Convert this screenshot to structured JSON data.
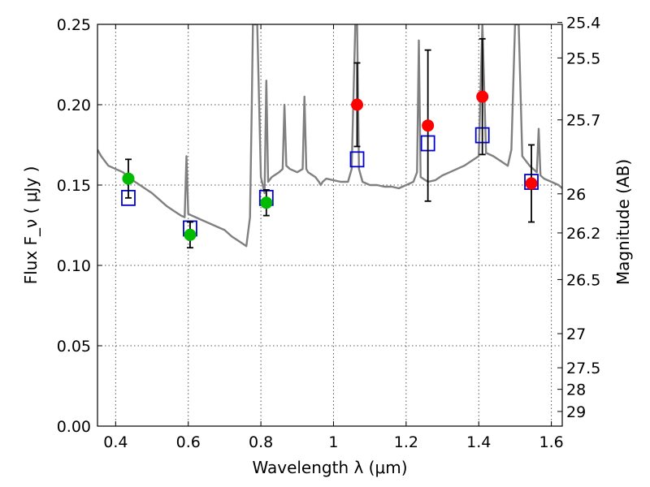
{
  "chart_data": {
    "type": "scatter",
    "xlabel": "Wavelength  λ (μm)",
    "ylabel": "Flux  F_ν  ( μJy )",
    "ylabel_right": "Magnitude (AB)",
    "xlim": [
      0.35,
      1.63
    ],
    "ylim": [
      0.0,
      0.25
    ],
    "grid": true,
    "x_ticks": [
      0.4,
      0.6,
      0.8,
      1.0,
      1.2,
      1.4,
      1.6
    ],
    "x_tick_labels": [
      "0.4",
      "0.6",
      "0.8",
      "1",
      "1.2",
      "1.4",
      "1.6"
    ],
    "y_ticks": [
      0.0,
      0.05,
      0.1,
      0.15,
      0.2,
      0.25
    ],
    "y_tick_labels": [
      "0.00",
      "0.05",
      "0.10",
      "0.15",
      "0.20",
      "0.25"
    ],
    "right_ticks": [
      {
        "mag": 25.4,
        "label": "25.4"
      },
      {
        "mag": 25.5,
        "label": "25.5"
      },
      {
        "mag": 25.7,
        "label": "25.7"
      },
      {
        "mag": 26.0,
        "label": "26"
      },
      {
        "mag": 26.2,
        "label": "26.2"
      },
      {
        "mag": 26.5,
        "label": "26.5"
      },
      {
        "mag": 27.0,
        "label": "27"
      },
      {
        "mag": 27.5,
        "label": "27.5"
      },
      {
        "mag": 28.0,
        "label": "28"
      },
      {
        "mag": 29.0,
        "label": "29"
      }
    ],
    "colors": {
      "template": "#808080",
      "model": "#0000cc",
      "optical": "#00bb00",
      "infrared": "#ff0000",
      "errorbar": "#000000",
      "grid": "#555555"
    },
    "series": [
      {
        "kind": "line",
        "color": "#808080",
        "x": [
          0.35,
          0.36,
          0.38,
          0.4,
          0.42,
          0.44,
          0.46,
          0.48,
          0.5,
          0.52,
          0.54,
          0.56,
          0.58,
          0.59,
          0.595,
          0.6,
          0.62,
          0.64,
          0.66,
          0.68,
          0.7,
          0.72,
          0.74,
          0.76,
          0.77,
          0.775,
          0.778,
          0.785,
          0.79,
          0.8,
          0.81,
          0.815,
          0.82,
          0.83,
          0.85,
          0.86,
          0.865,
          0.87,
          0.88,
          0.9,
          0.915,
          0.92,
          0.925,
          0.93,
          0.95,
          0.96,
          0.965,
          0.97,
          0.98,
          1.0,
          1.02,
          1.04,
          1.05,
          1.06,
          1.065,
          1.07,
          1.08,
          1.1,
          1.12,
          1.14,
          1.16,
          1.18,
          1.2,
          1.22,
          1.23,
          1.235,
          1.24,
          1.26,
          1.28,
          1.3,
          1.32,
          1.34,
          1.36,
          1.38,
          1.4,
          1.41,
          1.42,
          1.44,
          1.46,
          1.48,
          1.49,
          1.5,
          1.51,
          1.52,
          1.54,
          1.56,
          1.565,
          1.57,
          1.58,
          1.6,
          1.62,
          1.63
        ],
        "y": [
          0.172,
          0.168,
          0.162,
          0.16,
          0.158,
          0.154,
          0.151,
          0.148,
          0.145,
          0.141,
          0.137,
          0.134,
          0.131,
          0.13,
          0.168,
          0.132,
          0.13,
          0.128,
          0.126,
          0.124,
          0.122,
          0.118,
          0.115,
          0.112,
          0.13,
          0.2,
          0.25,
          0.25,
          0.25,
          0.155,
          0.145,
          0.215,
          0.152,
          0.155,
          0.158,
          0.16,
          0.2,
          0.162,
          0.16,
          0.158,
          0.16,
          0.205,
          0.16,
          0.158,
          0.155,
          0.152,
          0.15,
          0.152,
          0.154,
          0.153,
          0.152,
          0.152,
          0.16,
          0.25,
          0.25,
          0.16,
          0.152,
          0.15,
          0.15,
          0.149,
          0.149,
          0.148,
          0.15,
          0.152,
          0.158,
          0.24,
          0.155,
          0.152,
          0.153,
          0.156,
          0.158,
          0.16,
          0.162,
          0.165,
          0.168,
          0.25,
          0.17,
          0.168,
          0.165,
          0.162,
          0.172,
          0.25,
          0.25,
          0.168,
          0.162,
          0.158,
          0.185,
          0.156,
          0.154,
          0.152,
          0.15,
          0.148
        ]
      },
      {
        "kind": "markers",
        "marker": "open-square",
        "color": "#0000cc",
        "x": [
          0.435,
          0.605,
          0.815,
          1.065,
          1.26,
          1.41,
          1.545
        ],
        "y": [
          0.142,
          0.123,
          0.142,
          0.166,
          0.176,
          0.181,
          0.152
        ]
      },
      {
        "kind": "markers",
        "marker": "filled-circle",
        "color": "#00bb00",
        "x": [
          0.435,
          0.605,
          0.815
        ],
        "y": [
          0.154,
          0.119,
          0.139
        ],
        "yerr": [
          0.012,
          0.008,
          0.008
        ]
      },
      {
        "kind": "markers",
        "marker": "filled-circle",
        "color": "#ff0000",
        "x": [
          1.065,
          1.26,
          1.41,
          1.545
        ],
        "y": [
          0.2,
          0.187,
          0.205,
          0.151
        ],
        "yerr": [
          0.026,
          0.047,
          0.036,
          0.024
        ]
      }
    ]
  }
}
